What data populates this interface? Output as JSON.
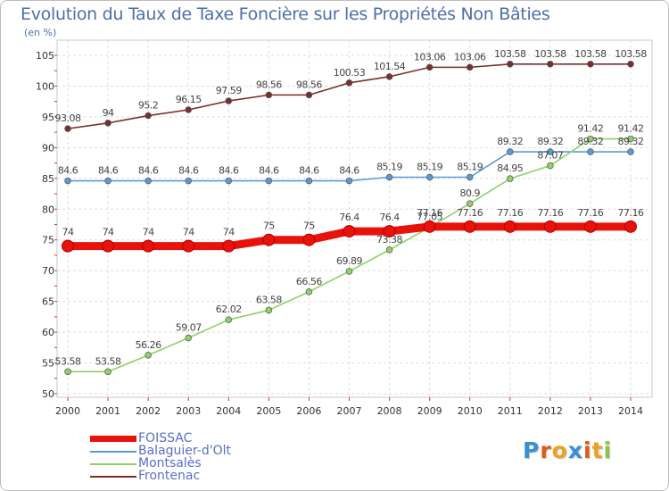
{
  "header": {
    "title": "Evolution du Taux de Taxe Foncière sur les Propriétés Non Bâties",
    "subtitle": "(en %)"
  },
  "logo": {
    "letters": [
      "P",
      "r",
      "o",
      "x",
      "i",
      "t",
      "i"
    ],
    "colors": [
      "#3a8fd0",
      "#e05a1a",
      "#f0a020",
      "#3a8fd0",
      "#e05a1a",
      "#f0a020",
      "#8cc63f"
    ]
  },
  "chart_data": {
    "type": "line",
    "title": "Evolution du Taux de Taxe Foncière sur les Propriétés Non Bâties",
    "ylabel": "(en %)",
    "xlabel": "",
    "x": [
      "2000",
      "2001",
      "2002",
      "2003",
      "2004",
      "2005",
      "2006",
      "2007",
      "2008",
      "2009",
      "2010",
      "2011",
      "2012",
      "2013",
      "2014"
    ],
    "ylim": [
      50,
      105
    ],
    "yticks": [
      "50",
      "55",
      "60",
      "65",
      "70",
      "75",
      "80",
      "85",
      "90",
      "95",
      "100",
      "105"
    ],
    "grid": true,
    "legend_position": "bottom-left",
    "series": [
      {
        "name": "FOISSAC",
        "color": "#e8120c",
        "emphasis": "thick",
        "values": [
          74,
          74,
          74,
          74,
          74,
          75,
          75,
          76.4,
          76.4,
          77.16,
          77.16,
          77.16,
          77.16,
          77.16,
          77.16
        ],
        "labels": [
          "74",
          "74",
          "74",
          "74",
          "74",
          "75",
          "75",
          "76.4",
          "76.4",
          "77.16",
          "77.16",
          "77.16",
          "77.16",
          "77.16",
          "77.16"
        ]
      },
      {
        "name": "Balaguier-d'Olt",
        "color": "#5b9bd5",
        "values": [
          84.6,
          84.6,
          84.6,
          84.6,
          84.6,
          84.6,
          84.6,
          84.6,
          85.19,
          85.19,
          85.19,
          89.32,
          89.32,
          89.32,
          89.32
        ],
        "labels": [
          "84.6",
          "84.6",
          "84.6",
          "84.6",
          "84.6",
          "84.6",
          "84.6",
          "84.6",
          "85.19",
          "85.19",
          "85.19",
          "89.32",
          "89.32",
          "89.32",
          "89.32"
        ]
      },
      {
        "name": "Montsalès",
        "color": "#8fd168",
        "values": [
          53.58,
          53.58,
          56.26,
          59.07,
          62.02,
          63.58,
          66.56,
          69.89,
          73.38,
          77.05,
          80.9,
          84.95,
          87.07,
          91.42,
          91.42
        ],
        "labels": [
          "53.58",
          "53.58",
          "56.26",
          "59.07",
          "62.02",
          "63.58",
          "66.56",
          "69.89",
          "73.38",
          "77.05",
          "80.9",
          "84.95",
          "87.07",
          "91.42",
          "91.42"
        ]
      },
      {
        "name": "Frontenac",
        "color": "#7a2e2e",
        "values": [
          93.08,
          94,
          95.2,
          96.15,
          97.59,
          98.56,
          98.56,
          100.53,
          101.54,
          103.06,
          103.06,
          103.58,
          103.58,
          103.58,
          103.58
        ],
        "labels": [
          "93.08",
          "94",
          "95.2",
          "96.15",
          "97.59",
          "98.56",
          "98.56",
          "100.53",
          "101.54",
          "103.06",
          "103.06",
          "103.58",
          "103.58",
          "103.58",
          "103.58"
        ]
      }
    ]
  }
}
